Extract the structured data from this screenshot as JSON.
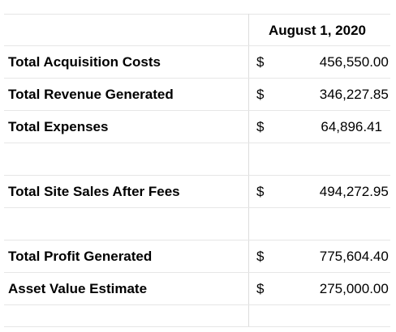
{
  "report": {
    "date_header": "August 1, 2020",
    "rows": [
      {
        "label": "Total Acquisition Costs",
        "currency": "$",
        "amount": "456,550.00"
      },
      {
        "label": "Total Revenue Generated",
        "currency": "$",
        "amount": "346,227.85"
      },
      {
        "label": "Total Expenses",
        "currency": "$",
        "amount": "64,896.41"
      },
      {
        "label": "Total Site Sales After Fees",
        "currency": "$",
        "amount": "494,272.95"
      },
      {
        "label": "Total Profit Generated",
        "currency": "$",
        "amount": "775,604.40"
      },
      {
        "label": "Asset Value Estimate",
        "currency": "$",
        "amount": "275,000.00"
      }
    ]
  }
}
